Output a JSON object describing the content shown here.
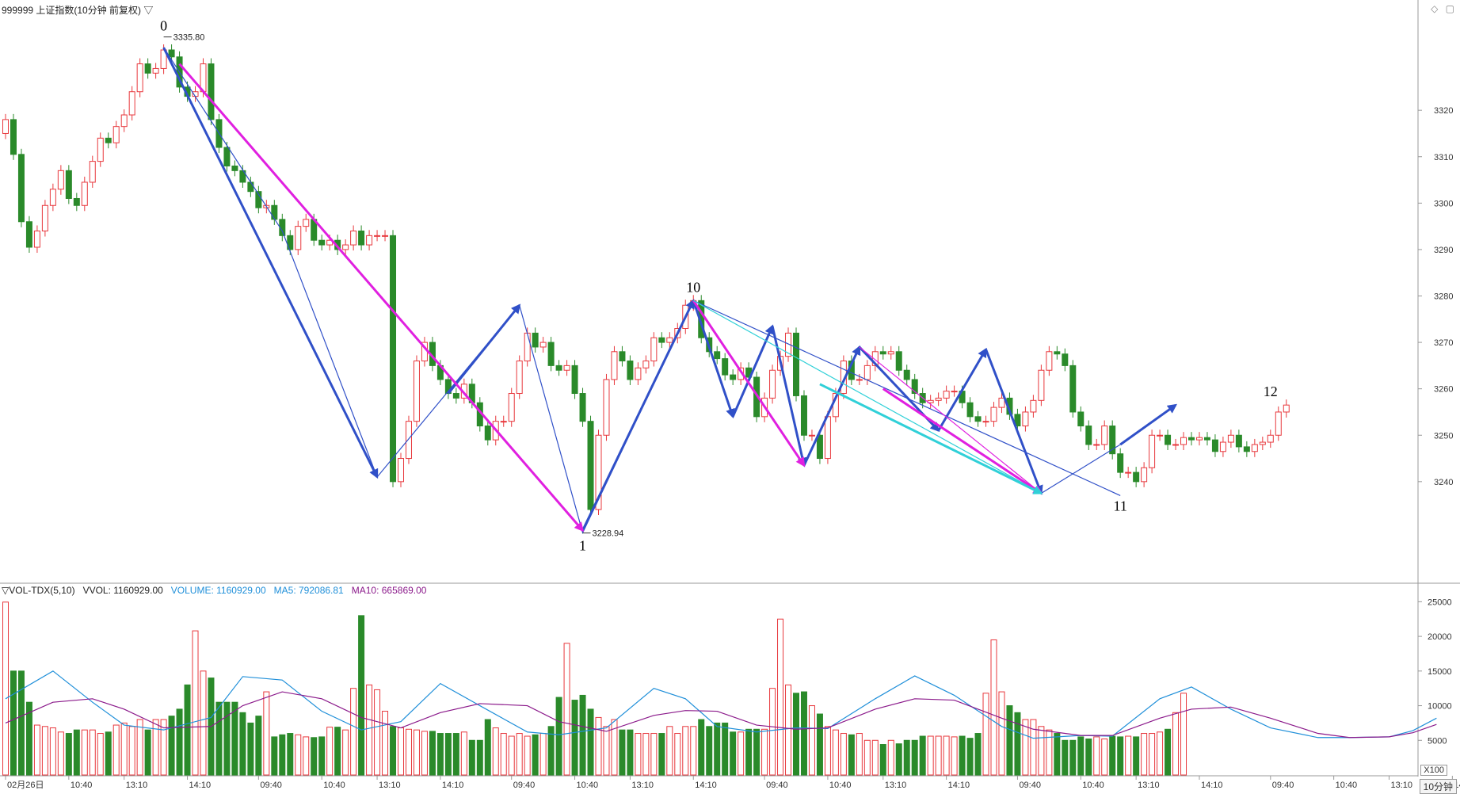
{
  "header": {
    "title": "999999 上证指数(10分钟 前复权) ▽",
    "vol_indicator": "▽VOL-TDX(5,10)",
    "vvol": "VVOL: 1160929.00",
    "volume": "VOLUME: 1160929.00",
    "ma5": "MA5: 792086.81",
    "ma10": "MA10: 665869.00"
  },
  "colors": {
    "up": "#e8383d",
    "down": "#2a8a2a",
    "volume_ma5": "#1f8fd9",
    "volume_ma10": "#8b1a8b",
    "wave_blue": "#3050c8",
    "wave_magenta": "#e020e0",
    "wave_cyan": "#30d0d8",
    "axis_text": "#333333",
    "vol_label": "#222222"
  },
  "controls": {
    "corner_icons": "◇ ▢",
    "zoom": "X100",
    "period": "10分钟"
  },
  "chart_data": [
    {
      "type": "candlestick",
      "title": "999999 上证指数(10分钟 前复权)",
      "y_ticks": [
        3240,
        3250,
        3260,
        3270,
        3280,
        3290,
        3300,
        3310,
        3320
      ],
      "ylim": [
        3220,
        3340
      ],
      "x_ticks": [
        {
          "i": 0,
          "label": "02月26日"
        },
        {
          "i": 8,
          "label": "10:40"
        },
        {
          "i": 15,
          "label": "13:10"
        },
        {
          "i": 23,
          "label": "14:10"
        },
        {
          "i": 32,
          "label": "09:40"
        },
        {
          "i": 40,
          "label": "10:40"
        },
        {
          "i": 47,
          "label": "13:10"
        },
        {
          "i": 55,
          "label": "14:10"
        },
        {
          "i": 64,
          "label": "09:40"
        },
        {
          "i": 72,
          "label": "10:40"
        },
        {
          "i": 79,
          "label": "13:10"
        },
        {
          "i": 87,
          "label": "14:10"
        },
        {
          "i": 96,
          "label": "09:40"
        },
        {
          "i": 104,
          "label": "10:40"
        },
        {
          "i": 111,
          "label": "13:10"
        },
        {
          "i": 119,
          "label": "14:10"
        },
        {
          "i": 128,
          "label": "09:40"
        },
        {
          "i": 136,
          "label": "10:40"
        },
        {
          "i": 143,
          "label": "13:10"
        },
        {
          "i": 151,
          "label": "14:10"
        },
        {
          "i": 160,
          "label": "09:40"
        },
        {
          "i": 168,
          "label": "10:40"
        },
        {
          "i": 175,
          "label": "13:10"
        },
        {
          "i": 183,
          "label": "14:10"
        }
      ],
      "closes": [
        3318.0,
        3310.5,
        3296.0,
        3290.5,
        3294.0,
        3299.5,
        3303.0,
        3307.0,
        3301.0,
        3299.5,
        3304.5,
        3309.0,
        3314.0,
        3313.0,
        3316.5,
        3319.0,
        3324.0,
        3330.0,
        3328.0,
        3329.0,
        3333.0,
        3331.5,
        3325.0,
        3323.0,
        3324.0,
        3330.0,
        3318.0,
        3312.0,
        3308.0,
        3307.0,
        3304.5,
        3302.5,
        3299.0,
        3299.5,
        3296.5,
        3293.0,
        3290.0,
        3295.0,
        3296.5,
        3292.0,
        3291.0,
        3292.0,
        3290.0,
        3291.0,
        3294.0,
        3291.0,
        3293.0,
        3293.0,
        3293.0,
        3240.0,
        3245.0,
        3253.0,
        3266.0,
        3270.0,
        3265.0,
        3262.0,
        3259.0,
        3258.0,
        3261.0,
        3257.0,
        3252.0,
        3249.0,
        3253.0,
        3253.0,
        3259.0,
        3266.0,
        3272.0,
        3269.0,
        3270.0,
        3265.0,
        3264.0,
        3265.0,
        3259.0,
        3253.0,
        3234.0,
        3250.0,
        3262.0,
        3268.0,
        3266.0,
        3262.0,
        3264.5,
        3266.0,
        3271.0,
        3270.0,
        3271.0,
        3273.0,
        3278.0,
        3279.0,
        3271.0,
        3268.0,
        3266.5,
        3263.0,
        3262.0,
        3264.5,
        3262.5,
        3254.0,
        3258.0,
        3264.0,
        3267.0,
        3272.0,
        3258.5,
        3250.0,
        3250.0,
        3245.0,
        3254.0,
        3259.0,
        3266.0,
        3262.0,
        3262.0,
        3265.0,
        3268.0,
        3267.5,
        3268.0,
        3264.0,
        3262.0,
        3259.0,
        3257.0,
        3257.5,
        3258.0,
        3259.5,
        3259.5,
        3257.0,
        3254.0,
        3253.0,
        3253.0,
        3256.0,
        3258.0,
        3254.5,
        3252.0,
        3255.0,
        3257.5,
        3264.0,
        3268.0,
        3267.5,
        3265.0,
        3255.0,
        3252.0,
        3248.0,
        3248.0,
        3252.0,
        3246.0,
        3242.0,
        3242.0,
        3240.0,
        3243.0,
        3250.0,
        3250.0,
        3248.0,
        3248.0,
        3249.5,
        3249.0,
        3249.5,
        3249.0,
        3246.5,
        3248.5,
        3250.0,
        3247.5,
        3246.5,
        3248.0,
        3248.5,
        3250.0,
        3255.0,
        3256.5
      ],
      "wave_labels": [
        {
          "i": 20,
          "v": 3335.8,
          "text": "0",
          "pos": "top"
        },
        {
          "i": 73,
          "v": 3228.94,
          "text": "1",
          "pos": "bottom"
        },
        {
          "i": 87,
          "v": 3279.5,
          "text": "10",
          "pos": "top"
        },
        {
          "i": 141,
          "v": 3237.5,
          "text": "11",
          "pos": "bottom"
        },
        {
          "i": 160,
          "v": 3257.0,
          "text": "12",
          "pos": "top"
        }
      ],
      "price_annotations": [
        {
          "i": 20,
          "v": 3335.8,
          "text": "3335.80"
        },
        {
          "i": 73,
          "v": 3228.94,
          "text": "3228.94"
        }
      ],
      "wave_lines": [
        {
          "color": "wave_blue",
          "width": 1.2,
          "arrow": false,
          "points": [
            [
              20,
              3333.5
            ],
            [
              35,
              3294.0
            ],
            [
              47,
              3241.0
            ],
            [
              65,
              3278.0
            ],
            [
              73,
              3229.0
            ],
            [
              87,
              3279.0
            ],
            [
              141,
              3237.0
            ]
          ]
        },
        {
          "color": "wave_blue",
          "width": 3,
          "arrow": true,
          "points": [
            [
              20,
              3333.5
            ],
            [
              47,
              3241.0
            ]
          ]
        },
        {
          "color": "wave_blue",
          "width": 3,
          "arrow": true,
          "points": [
            [
              56,
              3259.0
            ],
            [
              65,
              3278.0
            ]
          ]
        },
        {
          "color": "wave_blue",
          "width": 3,
          "arrow": true,
          "points": [
            [
              73,
              3229.5
            ],
            [
              87,
              3279.0
            ]
          ]
        },
        {
          "color": "wave_blue",
          "width": 3,
          "arrow": true,
          "points": [
            [
              87,
              3279.0
            ],
            [
              92,
              3254.0
            ]
          ]
        },
        {
          "color": "wave_blue",
          "width": 3,
          "arrow": true,
          "points": [
            [
              92,
              3254.0
            ],
            [
              97,
              3273.5
            ]
          ]
        },
        {
          "color": "wave_blue",
          "width": 3,
          "arrow": true,
          "points": [
            [
              97,
              3273.5
            ],
            [
              101,
              3243.5
            ]
          ]
        },
        {
          "color": "wave_blue",
          "width": 3,
          "arrow": true,
          "points": [
            [
              101,
              3243.5
            ],
            [
              108,
              3269.0
            ]
          ]
        },
        {
          "color": "wave_blue",
          "width": 3,
          "arrow": true,
          "points": [
            [
              108,
              3269.0
            ],
            [
              118,
              3251.0
            ]
          ]
        },
        {
          "color": "wave_blue",
          "width": 3,
          "arrow": true,
          "points": [
            [
              118,
              3251.0
            ],
            [
              124,
              3268.5
            ]
          ]
        },
        {
          "color": "wave_blue",
          "width": 3,
          "arrow": true,
          "points": [
            [
              124,
              3268.5
            ],
            [
              131,
              3237.5
            ]
          ]
        },
        {
          "color": "wave_blue",
          "width": 3,
          "arrow": true,
          "points": [
            [
              141,
              3248.0
            ],
            [
              148,
              3256.5
            ]
          ]
        },
        {
          "color": "wave_blue",
          "width": 1.2,
          "arrow": false,
          "points": [
            [
              131,
              3237.5
            ],
            [
              141,
              3248.0
            ]
          ]
        },
        {
          "color": "wave_magenta",
          "width": 3,
          "arrow": true,
          "points": [
            [
              22,
              3330.0
            ],
            [
              73,
              3229.5
            ]
          ]
        },
        {
          "color": "wave_magenta",
          "width": 3,
          "arrow": true,
          "points": [
            [
              87,
              3279.0
            ],
            [
              101,
              3243.5
            ]
          ]
        },
        {
          "color": "wave_magenta",
          "width": 1.2,
          "arrow": false,
          "points": [
            [
              108,
              3269.0
            ],
            [
              131,
              3237.5
            ]
          ]
        },
        {
          "color": "wave_magenta",
          "width": 3,
          "arrow": true,
          "points": [
            [
              111,
              3260.0
            ],
            [
              131,
              3237.5
            ]
          ]
        },
        {
          "color": "wave_cyan",
          "width": 1.2,
          "arrow": false,
          "points": [
            [
              87,
              3279.0
            ],
            [
              131,
              3237.5
            ]
          ]
        },
        {
          "color": "wave_cyan",
          "width": 3,
          "arrow": true,
          "points": [
            [
              103,
              3261.0
            ],
            [
              131,
              3237.5
            ]
          ]
        }
      ]
    },
    {
      "type": "bar",
      "title": "VOL-TDX(5,10)",
      "y_ticks": [
        5000,
        10000,
        15000,
        20000,
        25000
      ],
      "ylim": [
        0,
        25500
      ],
      "unit_note": "volumes shown in thousands (tick labels ×100 per X100)",
      "values": [
        24950,
        15000,
        15000,
        10500,
        7200,
        7000,
        6800,
        6200,
        6000,
        6500,
        6500,
        6500,
        6000,
        6200,
        7200,
        7500,
        7000,
        8000,
        6500,
        8000,
        8000,
        8500,
        9500,
        13000,
        20800,
        15000,
        14000,
        10500,
        10500,
        10500,
        9000,
        7500,
        8500,
        12000,
        5500,
        5800,
        6000,
        5800,
        5500,
        5400,
        5500,
        6900,
        6900,
        6500,
        12500,
        23000,
        13000,
        12300,
        9200,
        7000,
        6800,
        6600,
        6500,
        6300,
        6300,
        6000,
        6000,
        6000,
        6200,
        5000,
        5000,
        8000,
        6800,
        6000,
        5600,
        6000,
        5600,
        5800,
        6000,
        7000,
        11200,
        19000,
        10800,
        11500,
        9500,
        8300,
        7000,
        8000,
        6500,
        6500,
        6000,
        6000,
        6000,
        6000,
        7000,
        6000,
        7000,
        7000,
        8000,
        7000,
        7500,
        7500,
        6200,
        6200,
        6600,
        6600,
        6600,
        12500,
        22500,
        13000,
        11800,
        12000,
        10000,
        8800,
        7000,
        6500,
        6000,
        5800,
        6000,
        5000,
        5000,
        4400,
        5000,
        4500,
        5000,
        5000,
        5600,
        5600,
        5600,
        5600,
        5500,
        5600,
        5300,
        6000,
        11800,
        19500,
        12000,
        10000,
        9000,
        8000,
        8000,
        7000,
        6500,
        6000,
        5000,
        5000,
        5500,
        5200,
        5500,
        5200,
        5600,
        5500,
        5600,
        5500,
        6000,
        6000,
        6200,
        6600,
        9000,
        11800
      ],
      "series": [
        {
          "name": "MA5",
          "color": "volume_ma5",
          "points": [
            [
              0,
              11000
            ],
            [
              6,
              15000
            ],
            [
              11,
              10500
            ],
            [
              15,
              7200
            ],
            [
              20,
              6500
            ],
            [
              26,
              8300
            ],
            [
              30,
              14200
            ],
            [
              35,
              13700
            ],
            [
              40,
              9200
            ],
            [
              45,
              6500
            ],
            [
              50,
              7700
            ],
            [
              55,
              13200
            ],
            [
              60,
              10000
            ],
            [
              66,
              6200
            ],
            [
              70,
              5800
            ],
            [
              76,
              6800
            ],
            [
              82,
              12500
            ],
            [
              86,
              11000
            ],
            [
              90,
              7000
            ],
            [
              95,
              6200
            ],
            [
              100,
              6800
            ],
            [
              104,
              6700
            ],
            [
              110,
              11000
            ],
            [
              115,
              14300
            ],
            [
              120,
              11500
            ],
            [
              126,
              7000
            ],
            [
              130,
              5300
            ],
            [
              136,
              5700
            ],
            [
              140,
              5600
            ],
            [
              146,
              11000
            ],
            [
              150,
              12700
            ],
            [
              155,
              9500
            ],
            [
              160,
              6800
            ],
            [
              166,
              5400
            ],
            [
              170,
              5400
            ],
            [
              175,
              5500
            ],
            [
              178,
              6400
            ],
            [
              181,
              8200
            ]
          ]
        },
        {
          "name": "MA10",
          "color": "volume_ma10",
          "points": [
            [
              0,
              7500
            ],
            [
              6,
              10500
            ],
            [
              11,
              11000
            ],
            [
              15,
              9500
            ],
            [
              20,
              6800
            ],
            [
              26,
              7000
            ],
            [
              30,
              10000
            ],
            [
              35,
              12000
            ],
            [
              40,
              11000
            ],
            [
              45,
              8300
            ],
            [
              50,
              6800
            ],
            [
              55,
              9000
            ],
            [
              60,
              10300
            ],
            [
              66,
              10000
            ],
            [
              70,
              7700
            ],
            [
              76,
              6300
            ],
            [
              82,
              8600
            ],
            [
              86,
              9300
            ],
            [
              90,
              9200
            ],
            [
              95,
              7200
            ],
            [
              100,
              6600
            ],
            [
              104,
              6800
            ],
            [
              110,
              9500
            ],
            [
              115,
              11000
            ],
            [
              120,
              10800
            ],
            [
              126,
              8200
            ],
            [
              130,
              6600
            ],
            [
              136,
              5700
            ],
            [
              140,
              5700
            ],
            [
              146,
              8200
            ],
            [
              150,
              9500
            ],
            [
              155,
              9800
            ],
            [
              160,
              8200
            ],
            [
              166,
              6000
            ],
            [
              170,
              5400
            ],
            [
              175,
              5500
            ],
            [
              178,
              6100
            ],
            [
              181,
              7300
            ]
          ]
        }
      ]
    }
  ]
}
